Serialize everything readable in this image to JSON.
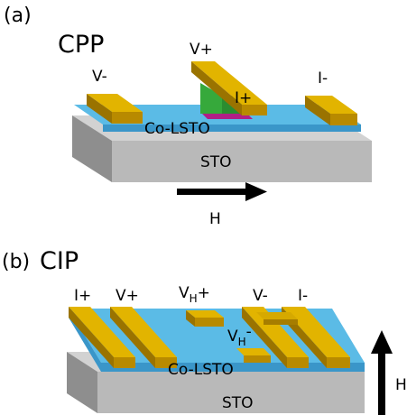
{
  "panel_a": {
    "tag": "(a)",
    "mode": "CPP",
    "labels": {
      "v_minus": "V-",
      "v_plus": "V+",
      "i_plus": "I+",
      "i_minus": "I-",
      "film": "Co-LSTO",
      "substrate": "STO",
      "field": "H"
    }
  },
  "panel_b": {
    "tag": "(b)",
    "mode": "CIP",
    "labels": {
      "i_plus": "I+",
      "v_plus": "V+",
      "vh_plus_base": "V",
      "vh_plus_sub": "H",
      "vh_plus_sign": "+",
      "v_minus": "V-",
      "i_minus": "I-",
      "vh_minus_base": "V",
      "vh_minus_sub": "H",
      "vh_minus_sign": "-",
      "film": "Co-LSTO",
      "substrate": "STO",
      "field": "H"
    }
  },
  "colors": {
    "substrate_top": "#d2d2d2",
    "substrate_front": "#b9b9b9",
    "substrate_side": "#8e8e8e",
    "film_top": "#5bbbe6",
    "film_front": "#3a96c9",
    "gold_top": "#e2b400",
    "gold_front": "#b88a00",
    "gold_side": "#9a7300",
    "green_layer": "#36a93b",
    "magenta_layer": "#b01f86",
    "arrow": "#000000"
  }
}
